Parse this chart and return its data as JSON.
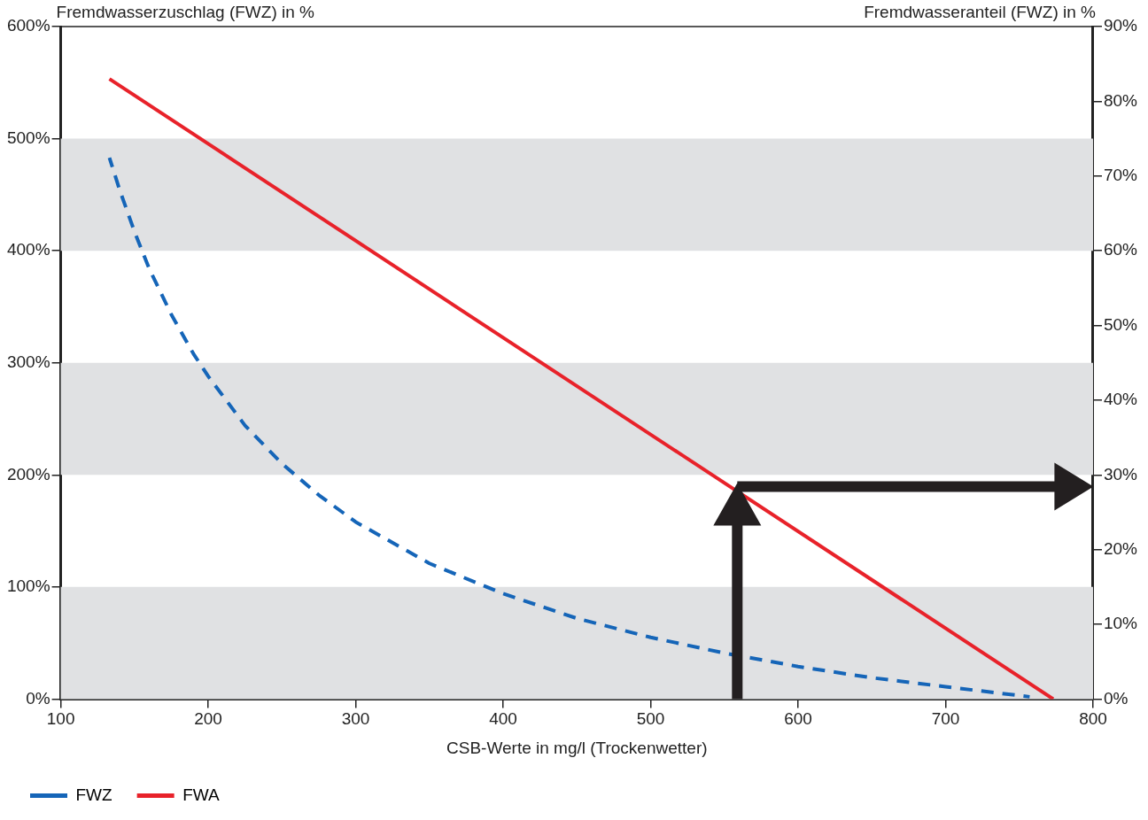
{
  "chart_data": {
    "type": "line",
    "xlabel": "CSB-Werte in mg/l (Trockenwetter)",
    "ylabel": "Fremdwasserzuschlag (FWZ) in %",
    "y2label": "Fremdwasseranteil (FWZ) in %",
    "xlim": [
      100,
      800
    ],
    "xticks": [
      100,
      200,
      300,
      400,
      500,
      600,
      700,
      800
    ],
    "ylim": [
      0,
      600
    ],
    "yticks": [
      {
        "value": 0,
        "label": "0%"
      },
      {
        "value": 100,
        "label": "100%"
      },
      {
        "value": 200,
        "label": "200%"
      },
      {
        "value": 300,
        "label": "300%"
      },
      {
        "value": 400,
        "label": "400%"
      },
      {
        "value": 500,
        "label": "500%"
      },
      {
        "value": 600,
        "label": "600%"
      }
    ],
    "y2lim": [
      0,
      90
    ],
    "y2ticks": [
      {
        "value": 0,
        "label": "0%"
      },
      {
        "value": 10,
        "label": "10%"
      },
      {
        "value": 20,
        "label": "20%"
      },
      {
        "value": 30,
        "label": "30%"
      },
      {
        "value": 40,
        "label": "40%"
      },
      {
        "value": 50,
        "label": "50%"
      },
      {
        "value": 60,
        "label": "60%"
      },
      {
        "value": 70,
        "label": "70%"
      },
      {
        "value": 80,
        "label": "80%"
      },
      {
        "value": 90,
        "label": "90%"
      }
    ],
    "series": [
      {
        "name": "FWZ",
        "color": "#1565b8",
        "line_style": "dashed",
        "x": [
          133,
          140,
          150,
          160,
          175,
          190,
          200,
          225,
          250,
          275,
          300,
          350,
          400,
          450,
          500,
          550,
          600,
          650,
          700,
          757
        ],
        "values": [
          483,
          454,
          417,
          384,
          343,
          308,
          288,
          244,
          210,
          182,
          158,
          121,
          94,
          72,
          55,
          41,
          29,
          19,
          11,
          2
        ]
      },
      {
        "name": "FWA",
        "color": "#e8222a",
        "line_style": "solid",
        "axis": "y2",
        "x": [
          133,
          773
        ],
        "values": [
          83,
          0
        ]
      }
    ],
    "bands": [
      {
        "axis": "y",
        "from": 0,
        "to": 100,
        "color": "#e0e1e3"
      },
      {
        "axis": "y",
        "from": 200,
        "to": 300,
        "color": "#e0e1e3"
      },
      {
        "axis": "y",
        "from": 400,
        "to": 500,
        "color": "#e0e1e3"
      }
    ],
    "grid": false,
    "marker": "none",
    "legend": "bottom"
  }
}
